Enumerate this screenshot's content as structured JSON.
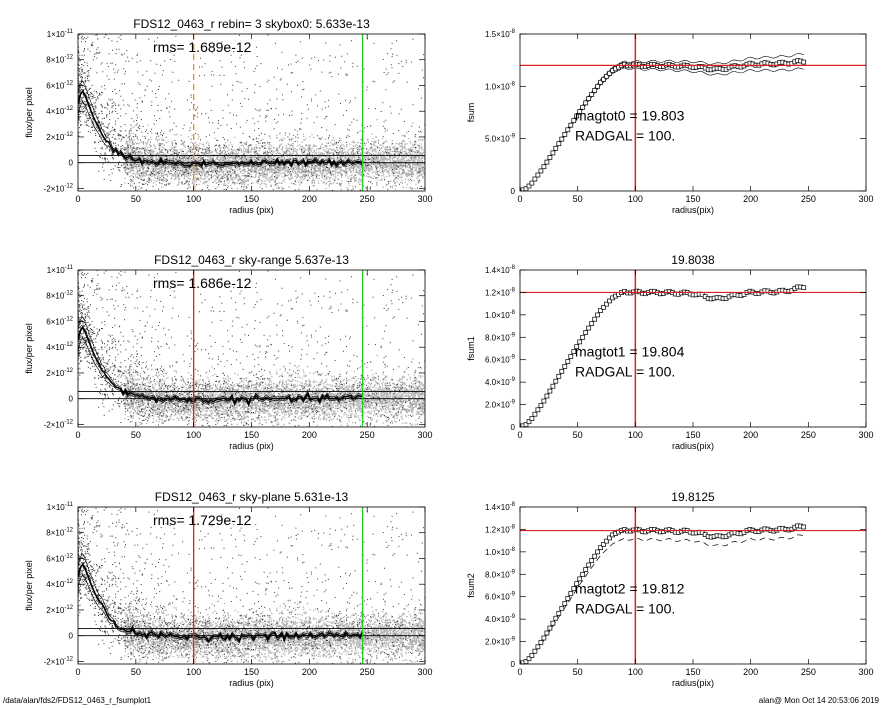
{
  "footer": {
    "left": "/data/alan/fds2/FDS12_0463_r_fsumplot1",
    "right": "alan@  Mon Oct 14 20:53:06 2019"
  },
  "colors": {
    "scatter_dark": "#222222",
    "scatter_grey": "#9a9a9a",
    "profile": "#000000",
    "marker_orange": "#f08a1c",
    "marker_red": "#e02020",
    "marker_green": "#22cc22"
  },
  "chart_data": [
    {
      "id": "p1",
      "type": "scatter",
      "title": "FDS12_0463_r rebin= 3    skybox0:  5.633e-13",
      "annotation": "rms= 1.689e-12",
      "xlabel": "radius (pix)",
      "ylabel": "flux/per pixel",
      "xlim": [
        0,
        300
      ],
      "ylim": [
        -2.2e-12,
        1e-11
      ],
      "xticks": [
        "0",
        "50",
        "100",
        "150",
        "200",
        "250",
        "300"
      ],
      "yticks": [
        {
          "v": 1e-11,
          "m": "1×10",
          "e": "-11"
        },
        {
          "v": 8e-12,
          "m": "8×10",
          "e": "-12"
        },
        {
          "v": 6e-12,
          "m": "6×10",
          "e": "-12"
        },
        {
          "v": 4e-12,
          "m": "4×10",
          "e": "-12"
        },
        {
          "v": 2e-12,
          "m": "2×10",
          "e": "-12"
        },
        {
          "v": 0,
          "m": "0",
          "e": ""
        },
        {
          "v": -2e-12,
          "m": "-2×10",
          "e": "-12"
        }
      ],
      "hlines": [
        0,
        5.633e-13
      ],
      "vlines": [
        {
          "x": 100,
          "color": "orange",
          "dashed": true
        },
        {
          "x": 246,
          "color": "green",
          "dashed": false
        }
      ],
      "profile": [
        [
          0,
          4.6e-12
        ],
        [
          3,
          5.6e-12
        ],
        [
          5,
          5.5e-12
        ],
        [
          10,
          4.3e-12
        ],
        [
          15,
          3.2e-12
        ],
        [
          20,
          2.4e-12
        ],
        [
          25,
          1.7e-12
        ],
        [
          30,
          1.1e-12
        ],
        [
          40,
          5e-13
        ],
        [
          50,
          2e-13
        ],
        [
          60,
          1e-13
        ],
        [
          80,
          -5e-14
        ],
        [
          100,
          -1e-13
        ],
        [
          150,
          -5e-14
        ],
        [
          200,
          0
        ],
        [
          246,
          1e-13
        ]
      ],
      "envelope": 9e-13
    },
    {
      "id": "p2",
      "type": "line",
      "title": "",
      "annotation_lines": [
        "magtot0 =  19.803",
        "RADGAL =    100."
      ],
      "xlabel": "radius(pix)",
      "ylabel": "fsum",
      "xlim": [
        0,
        300
      ],
      "ylim": [
        0,
        1.5e-08
      ],
      "xticks": [
        "0",
        "50",
        "100",
        "150",
        "200",
        "250",
        "300"
      ],
      "yticks": [
        {
          "v": 1.5e-08,
          "m": "1.5×10",
          "e": "-8"
        },
        {
          "v": 1e-08,
          "m": "1.0×10",
          "e": "-8"
        },
        {
          "v": 5e-09,
          "m": "5.0×10",
          "e": "-9"
        },
        {
          "v": 0,
          "m": "0",
          "e": ""
        }
      ],
      "hline": 1.2e-08,
      "vline": 100,
      "curve": [
        [
          0,
          0
        ],
        [
          5,
          2e-10
        ],
        [
          10,
          7e-10
        ],
        [
          20,
          2.2e-09
        ],
        [
          30,
          3.9e-09
        ],
        [
          40,
          5.6e-09
        ],
        [
          50,
          7.3e-09
        ],
        [
          60,
          8.9e-09
        ],
        [
          70,
          1.04e-08
        ],
        [
          80,
          1.15e-08
        ],
        [
          90,
          1.21e-08
        ],
        [
          100,
          1.2e-08
        ],
        [
          120,
          1.2e-08
        ],
        [
          150,
          1.19e-08
        ],
        [
          170,
          1.16e-08
        ],
        [
          200,
          1.21e-08
        ],
        [
          230,
          1.22e-08
        ],
        [
          246,
          1.24e-08
        ]
      ],
      "band": true,
      "dashed_offset": 0
    },
    {
      "id": "p3",
      "type": "scatter",
      "title": "FDS12_0463_r sky-range  5.637e-13",
      "annotation": "rms= 1.686e-12",
      "xlabel": "radius (pix)",
      "ylabel": "flux/per pixel",
      "xlim": [
        0,
        300
      ],
      "ylim": [
        -2.2e-12,
        1e-11
      ],
      "xticks": [
        "0",
        "50",
        "100",
        "150",
        "200",
        "250",
        "300"
      ],
      "yticks": [
        {
          "v": 1e-11,
          "m": "1×10",
          "e": "-11"
        },
        {
          "v": 8e-12,
          "m": "8×10",
          "e": "-12"
        },
        {
          "v": 6e-12,
          "m": "6×10",
          "e": "-12"
        },
        {
          "v": 4e-12,
          "m": "4×10",
          "e": "-12"
        },
        {
          "v": 2e-12,
          "m": "2×10",
          "e": "-12"
        },
        {
          "v": 0,
          "m": "0",
          "e": ""
        },
        {
          "v": -2e-12,
          "m": "-2×10",
          "e": "-12"
        }
      ],
      "hlines": [
        0,
        5.637e-13
      ],
      "vlines": [
        {
          "x": 100,
          "color": "red",
          "dashed": false
        },
        {
          "x": 246,
          "color": "green",
          "dashed": false
        }
      ],
      "profile": [
        [
          0,
          4.6e-12
        ],
        [
          3,
          5.6e-12
        ],
        [
          5,
          5.5e-12
        ],
        [
          10,
          4.3e-12
        ],
        [
          15,
          3.2e-12
        ],
        [
          20,
          2.4e-12
        ],
        [
          25,
          1.7e-12
        ],
        [
          30,
          1.1e-12
        ],
        [
          40,
          5e-13
        ],
        [
          50,
          2e-13
        ],
        [
          60,
          1e-13
        ],
        [
          80,
          -5e-14
        ],
        [
          100,
          -1e-13
        ],
        [
          150,
          -5e-14
        ],
        [
          200,
          0
        ],
        [
          246,
          1e-13
        ]
      ],
      "envelope": 9e-13
    },
    {
      "id": "p4",
      "type": "line",
      "title": "19.8038",
      "annotation_lines": [
        "magtot1 =  19.804",
        "RADGAL =    100."
      ],
      "xlabel": "radius(pix)",
      "ylabel": "fsum1",
      "xlim": [
        0,
        300
      ],
      "ylim": [
        0,
        1.4e-08
      ],
      "xticks": [
        "0",
        "50",
        "100",
        "150",
        "200",
        "250",
        "300"
      ],
      "yticks": [
        {
          "v": 1.4e-08,
          "m": "1.4×10",
          "e": "-8"
        },
        {
          "v": 1.2e-08,
          "m": "1.2×10",
          "e": "-8"
        },
        {
          "v": 1e-08,
          "m": "1.0×10",
          "e": "-8"
        },
        {
          "v": 8e-09,
          "m": "8.0×10",
          "e": "-9"
        },
        {
          "v": 6e-09,
          "m": "6.0×10",
          "e": "-9"
        },
        {
          "v": 4e-09,
          "m": "4.0×10",
          "e": "-9"
        },
        {
          "v": 2e-09,
          "m": "2.0×10",
          "e": "-9"
        },
        {
          "v": 0,
          "m": "0",
          "e": ""
        }
      ],
      "hline": 1.2e-08,
      "vline": 100,
      "curve": [
        [
          0,
          0
        ],
        [
          5,
          2e-10
        ],
        [
          10,
          7e-10
        ],
        [
          20,
          2.2e-09
        ],
        [
          30,
          3.9e-09
        ],
        [
          40,
          5.6e-09
        ],
        [
          50,
          7.3e-09
        ],
        [
          60,
          8.9e-09
        ],
        [
          70,
          1.04e-08
        ],
        [
          80,
          1.15e-08
        ],
        [
          90,
          1.21e-08
        ],
        [
          100,
          1.2e-08
        ],
        [
          120,
          1.2e-08
        ],
        [
          150,
          1.19e-08
        ],
        [
          170,
          1.14e-08
        ],
        [
          200,
          1.2e-08
        ],
        [
          230,
          1.21e-08
        ],
        [
          246,
          1.25e-08
        ]
      ],
      "band": false,
      "dashed_offset": 0
    },
    {
      "id": "p5",
      "type": "scatter",
      "title": "FDS12_0463_r sky-plane  5.631e-13",
      "annotation": "rms= 1.729e-12",
      "xlabel": "radius (pix)",
      "ylabel": "flux/per pixel",
      "xlim": [
        0,
        300
      ],
      "ylim": [
        -2.2e-12,
        1e-11
      ],
      "xticks": [
        "0",
        "50",
        "100",
        "150",
        "200",
        "250",
        "300"
      ],
      "yticks": [
        {
          "v": 1e-11,
          "m": "1×10",
          "e": "-11"
        },
        {
          "v": 8e-12,
          "m": "8×10",
          "e": "-12"
        },
        {
          "v": 6e-12,
          "m": "6×10",
          "e": "-12"
        },
        {
          "v": 4e-12,
          "m": "4×10",
          "e": "-12"
        },
        {
          "v": 2e-12,
          "m": "2×10",
          "e": "-12"
        },
        {
          "v": 0,
          "m": "0",
          "e": ""
        },
        {
          "v": -2e-12,
          "m": "-2×10",
          "e": "-12"
        }
      ],
      "hlines": [
        0,
        5.631e-13
      ],
      "vlines": [
        {
          "x": 100,
          "color": "red",
          "dashed": false
        },
        {
          "x": 246,
          "color": "green",
          "dashed": false
        }
      ],
      "profile": [
        [
          0,
          4.6e-12
        ],
        [
          3,
          5.6e-12
        ],
        [
          5,
          5.5e-12
        ],
        [
          10,
          4.3e-12
        ],
        [
          15,
          3.2e-12
        ],
        [
          20,
          2.4e-12
        ],
        [
          25,
          1.7e-12
        ],
        [
          30,
          1.1e-12
        ],
        [
          40,
          5e-13
        ],
        [
          50,
          2e-13
        ],
        [
          60,
          1e-13
        ],
        [
          80,
          -5e-14
        ],
        [
          100,
          -1e-13
        ],
        [
          150,
          -5e-14
        ],
        [
          200,
          0
        ],
        [
          246,
          1e-13
        ]
      ],
      "envelope": 9e-13
    },
    {
      "id": "p6",
      "type": "line",
      "title": "19.8125",
      "annotation_lines": [
        "magtot2 =  19.812",
        "RADGAL =    100."
      ],
      "xlabel": "radius(pix)",
      "ylabel": "fsum2",
      "xlim": [
        0,
        300
      ],
      "ylim": [
        0,
        1.4e-08
      ],
      "xticks": [
        "0",
        "50",
        "100",
        "150",
        "200",
        "250",
        "300"
      ],
      "yticks": [
        {
          "v": 1.4e-08,
          "m": "1.4×10",
          "e": "-8"
        },
        {
          "v": 1.2e-08,
          "m": "1.2×10",
          "e": "-8"
        },
        {
          "v": 1e-08,
          "m": "1.0×10",
          "e": "-8"
        },
        {
          "v": 8e-09,
          "m": "8.0×10",
          "e": "-9"
        },
        {
          "v": 6e-09,
          "m": "6.0×10",
          "e": "-9"
        },
        {
          "v": 4e-09,
          "m": "4.0×10",
          "e": "-9"
        },
        {
          "v": 2e-09,
          "m": "2.0×10",
          "e": "-9"
        },
        {
          "v": 0,
          "m": "0",
          "e": ""
        }
      ],
      "hline": 1.19e-08,
      "vline": 100,
      "curve": [
        [
          0,
          0
        ],
        [
          5,
          2e-10
        ],
        [
          10,
          7e-10
        ],
        [
          20,
          2.2e-09
        ],
        [
          30,
          3.9e-09
        ],
        [
          40,
          5.6e-09
        ],
        [
          50,
          7.3e-09
        ],
        [
          60,
          8.9e-09
        ],
        [
          70,
          1.04e-08
        ],
        [
          80,
          1.15e-08
        ],
        [
          90,
          1.2e-08
        ],
        [
          100,
          1.19e-08
        ],
        [
          120,
          1.19e-08
        ],
        [
          150,
          1.18e-08
        ],
        [
          170,
          1.13e-08
        ],
        [
          200,
          1.19e-08
        ],
        [
          230,
          1.2e-08
        ],
        [
          246,
          1.23e-08
        ]
      ],
      "band": false,
      "dashed_offset": -8e-10
    }
  ]
}
